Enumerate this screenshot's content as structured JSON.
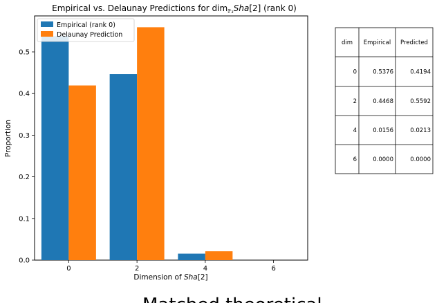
{
  "chart_data": {
    "type": "bar",
    "title_prefix": "Empirical vs. Delaunay Predictions for dim",
    "title_subscript": "𝔽₂",
    "title_var": "Sha",
    "title_suffix": "[2] (rank 0)",
    "xlabel_prefix": "Dimension of ",
    "xlabel_var": "Sha",
    "xlabel_suffix": "[2]",
    "ylabel": "Proportion",
    "categories": [
      0,
      2,
      4,
      6
    ],
    "x_ticks": [
      "0",
      "2",
      "4",
      "6"
    ],
    "y_ticks": [
      "0.0",
      "0.1",
      "0.2",
      "0.3",
      "0.4",
      "0.5"
    ],
    "ylim": [
      0,
      0.5864
    ],
    "xlim": [
      -1.0,
      7.0
    ],
    "legend_position": "top-left",
    "series": [
      {
        "name": "Empirical (rank 0)",
        "color": "#1f77b4",
        "values": [
          0.5376,
          0.4468,
          0.0156,
          0.0
        ]
      },
      {
        "name": "Delaunay Prediction",
        "color": "#ff7f0e",
        "values": [
          0.4194,
          0.5592,
          0.0213,
          0.0
        ]
      }
    ]
  },
  "table": {
    "headers": [
      "dim",
      "Empirical",
      "Predicted"
    ],
    "rows": [
      [
        "0",
        "0.5376",
        "0.4194"
      ],
      [
        "2",
        "0.4468",
        "0.5592"
      ],
      [
        "4",
        "0.0156",
        "0.0213"
      ],
      [
        "6",
        "0.0000",
        "0.0000"
      ]
    ]
  },
  "footer_text": "Matched theoretical"
}
